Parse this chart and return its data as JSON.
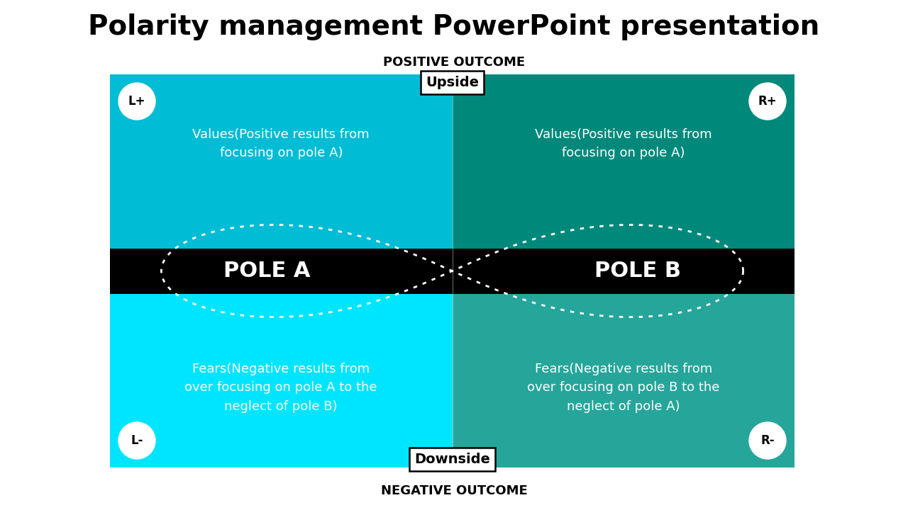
{
  "title": "Polarity management PowerPoint presentation",
  "title_fontsize": 28,
  "top_label": "POSITIVE OUTCOME",
  "bottom_label": "NEGATIVE OUTCOME",
  "pole_a_label": "POLE A",
  "pole_b_label": "POLE B",
  "upside_label": "Upside",
  "downside_label": "Downside",
  "corner_labels": [
    "L+",
    "R+",
    "L-",
    "R-"
  ],
  "top_left_text": "Values(Positive results from\nfocusing on pole A)",
  "top_right_text": "Values(Positive results from\nfocusing on pole A)",
  "bottom_left_text": "Fears(Negative results from\nover focusing on pole A to the\nneglect of pole B)",
  "bottom_right_text": "Fears(Negative results from\nover focusing on pole B to the\nneglect of pole A)",
  "color_top_left": "#00BCD4",
  "color_top_right": "#00897B",
  "color_bottom_left": "#00E5FF",
  "color_bottom_right": "#26A69A",
  "color_pole_bar": "#000000",
  "color_white": "#ffffff",
  "fig_width": 12.8,
  "fig_height": 7.2,
  "dpi": 100
}
